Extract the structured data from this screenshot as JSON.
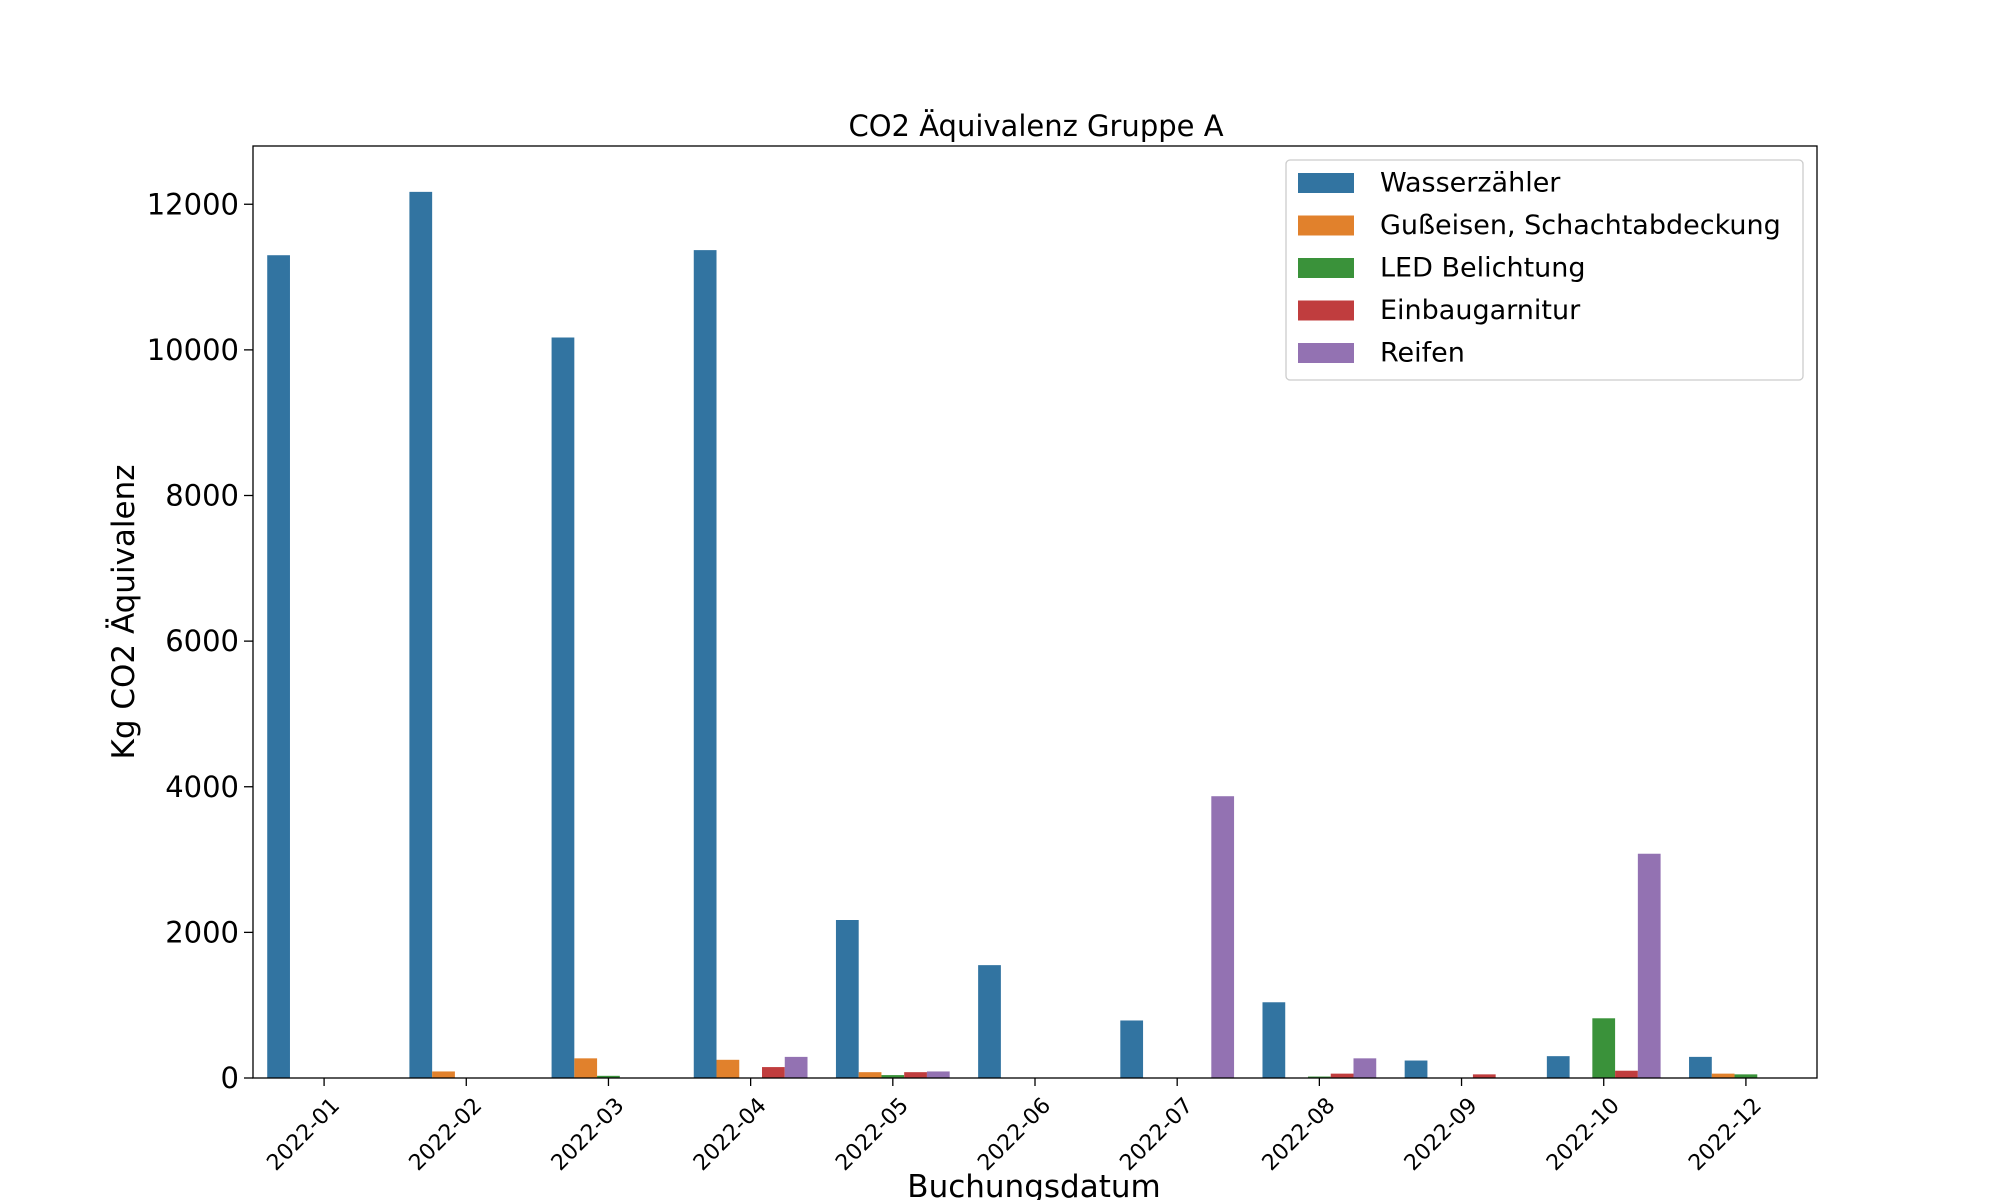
{
  "chart_data": {
    "type": "bar",
    "title": "CO2 Äquivalenz Gruppe A",
    "xlabel": "Buchungsdatum",
    "ylabel": "Kg CO2 Äquivalenz",
    "ylim": [
      0,
      12800
    ],
    "yticks": [
      0,
      2000,
      4000,
      6000,
      8000,
      10000,
      12000
    ],
    "ytick_labels": [
      "0",
      "2000",
      "4000",
      "6000",
      "8000",
      "10000",
      "12000"
    ],
    "grid": false,
    "legend_position": "top-right",
    "categories": [
      "2022-01",
      "2022-02",
      "2022-03",
      "2022-04",
      "2022-05",
      "2022-06",
      "2022-07",
      "2022-08",
      "2022-09",
      "2022-10",
      "2022-12"
    ],
    "series": [
      {
        "name": "Wasserzähler",
        "color": "#3274a1",
        "values": [
          11300,
          12170,
          10170,
          11370,
          2170,
          1550,
          790,
          1040,
          240,
          300,
          290
        ]
      },
      {
        "name": "Gußeisen, Schachtabdeckung",
        "color": "#e1812c",
        "values": [
          0,
          90,
          270,
          250,
          80,
          0,
          0,
          0,
          0,
          0,
          60
        ]
      },
      {
        "name": "LED Belichtung",
        "color": "#3a923a",
        "values": [
          0,
          0,
          30,
          0,
          40,
          0,
          0,
          20,
          0,
          820,
          50
        ]
      },
      {
        "name": "Einbaugarnitur",
        "color": "#c03d3e",
        "values": [
          0,
          0,
          0,
          150,
          80,
          0,
          0,
          60,
          50,
          100,
          0
        ]
      },
      {
        "name": "Reifen",
        "color": "#9372b2",
        "values": [
          0,
          0,
          0,
          290,
          90,
          0,
          3870,
          270,
          0,
          3080,
          0
        ]
      }
    ]
  }
}
